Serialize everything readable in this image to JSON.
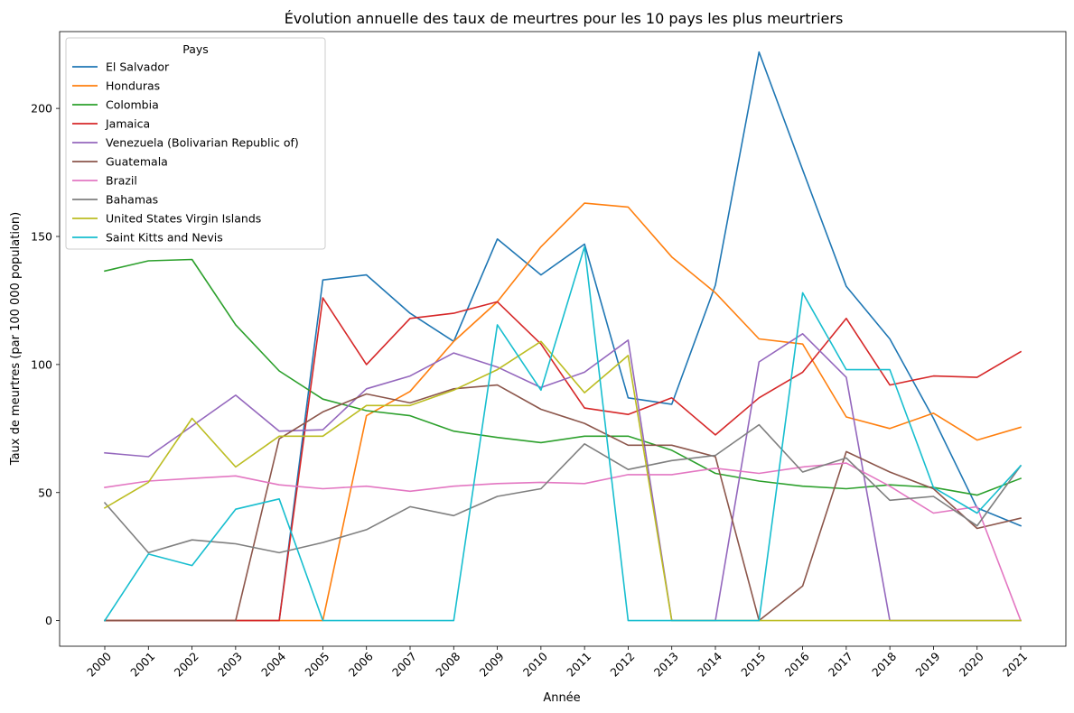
{
  "chart_data": {
    "type": "line",
    "title": "Évolution annuelle des taux de meurtres pour les 10 pays les plus meurtriers",
    "xlabel": "Année",
    "ylabel": "Taux de meurtres (par 100 000 population)",
    "ylim": [
      -10,
      230
    ],
    "yticks": [
      0,
      50,
      100,
      150,
      200
    ],
    "grid": false,
    "legend_title": "Pays",
    "legend_placement": "top-left",
    "x": [
      "2000",
      "2001",
      "2002",
      "2003",
      "2004",
      "2005",
      "2006",
      "2007",
      "2008",
      "2009",
      "2010",
      "2011",
      "2012",
      "2013",
      "2014",
      "2015",
      "2016",
      "2017",
      "2018",
      "2019",
      "2020",
      "2021"
    ],
    "series": [
      {
        "name": "El Salvador",
        "color": "#1f77b4",
        "values": [
          0,
          0,
          0,
          0,
          0,
          133,
          135,
          120,
          109,
          149,
          135,
          147,
          87,
          84.5,
          131,
          222,
          176,
          130.5,
          110,
          79,
          44,
          37
        ]
      },
      {
        "name": "Honduras",
        "color": "#ff7f0e",
        "values": [
          0,
          0,
          0,
          0,
          0,
          0,
          80,
          89.5,
          109,
          124.5,
          146,
          163,
          161.5,
          142,
          128,
          110,
          108,
          79.5,
          75,
          81,
          70.5,
          75.5
        ]
      },
      {
        "name": "Colombia",
        "color": "#2ca02c",
        "values": [
          136.5,
          140.5,
          141,
          115.5,
          97.5,
          86.5,
          82,
          80,
          74,
          71.5,
          69.5,
          72,
          72,
          66.5,
          57.5,
          54.5,
          52.5,
          51.5,
          53,
          52,
          49,
          55.5
        ]
      },
      {
        "name": "Jamaica",
        "color": "#d62728",
        "values": [
          0,
          0,
          0,
          0,
          0,
          126,
          100,
          118,
          120,
          124.5,
          108,
          83,
          80.5,
          87,
          72.5,
          87,
          97,
          118,
          92,
          95.5,
          95,
          105
        ]
      },
      {
        "name": "Venezuela (Bolivarian Republic of)",
        "color": "#9467bd",
        "values": [
          65.5,
          64,
          76,
          88,
          74,
          74.5,
          90.5,
          95.5,
          104.5,
          99,
          91,
          97,
          109.5,
          0,
          0,
          101,
          112,
          95,
          0,
          0,
          0,
          0
        ]
      },
      {
        "name": "Guatemala",
        "color": "#8c564b",
        "values": [
          0,
          0,
          0,
          0,
          71,
          81.5,
          88.5,
          85,
          90.5,
          92,
          82.5,
          77,
          68.5,
          68.5,
          64,
          0,
          13.5,
          66,
          58,
          51.5,
          36,
          40
        ]
      },
      {
        "name": "Brazil",
        "color": "#e377c2",
        "values": [
          52,
          54.5,
          55.5,
          56.5,
          53,
          51.5,
          52.5,
          50.5,
          52.5,
          53.5,
          54,
          53.5,
          57,
          57,
          59.5,
          57.5,
          60,
          61.5,
          52.5,
          42,
          44.5,
          0
        ]
      },
      {
        "name": "Bahamas",
        "color": "#7f7f7f",
        "values": [
          46,
          26.5,
          31.5,
          30,
          26.5,
          30.5,
          35.5,
          44.5,
          41,
          48.5,
          51.5,
          69,
          59,
          62.5,
          64.5,
          76.5,
          58,
          63.5,
          47,
          48.5,
          37,
          60.5
        ]
      },
      {
        "name": "United States Virgin Islands",
        "color": "#bcbd22",
        "values": [
          44,
          54,
          79,
          60,
          72,
          72,
          84,
          84,
          90,
          98,
          109,
          89,
          103.5,
          0,
          0,
          0,
          0,
          0,
          0,
          0,
          0,
          0
        ]
      },
      {
        "name": "Saint Kitts and Nevis",
        "color": "#17becf",
        "values": [
          0,
          26,
          21.5,
          43.5,
          47.5,
          0,
          0,
          0,
          0,
          115.5,
          90,
          146,
          0,
          0,
          0,
          0,
          128,
          98,
          98,
          52,
          42,
          60.5
        ]
      }
    ]
  }
}
